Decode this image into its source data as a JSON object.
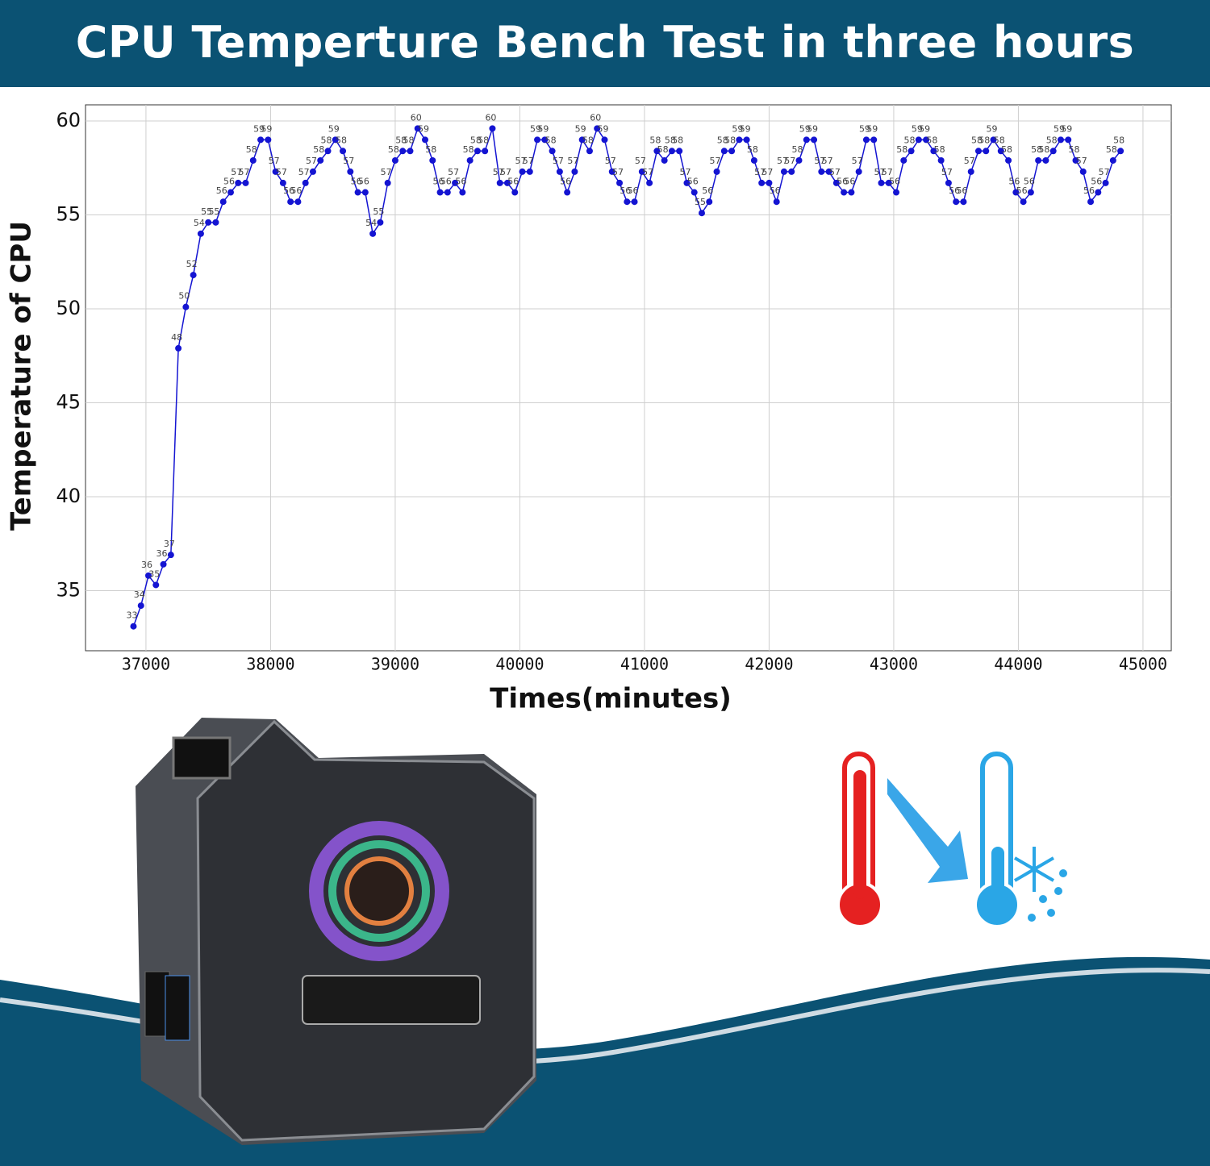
{
  "chart_data": {
    "type": "line",
    "title": "CPU Temperture Bench Test in three hours",
    "x_label": "Times(minutes)",
    "y_label": "Temperature of CPU",
    "color": "#1414d2",
    "grid": true,
    "xlim": [
      36515,
      45227
    ],
    "ylim": [
      31.8,
      60.86
    ],
    "xticks": [
      37000,
      38000,
      39000,
      40000,
      41000,
      42000,
      43000,
      44000,
      45000
    ],
    "yticks": [
      35,
      40,
      45,
      50,
      55,
      60
    ],
    "x": [
      36900,
      36960,
      37020,
      37080,
      37140,
      37200,
      37260,
      37320,
      37380,
      37440,
      37500,
      37560,
      37620,
      37680,
      37740,
      37800,
      37860,
      37920,
      37980,
      38040,
      38100,
      38160,
      38220,
      38280,
      38340,
      38400,
      38460,
      38520,
      38580,
      38640,
      38700,
      38760,
      38820,
      38880,
      38940,
      39000,
      39060,
      39120,
      39180,
      39240,
      39300,
      39360,
      39420,
      39480,
      39540,
      39600,
      39660,
      39720,
      39780,
      39840,
      39900,
      39960,
      40020,
      40080,
      40140,
      40200,
      40260,
      40320,
      40380,
      40440,
      40500,
      40560,
      40620,
      40680,
      40740,
      40800,
      40860,
      40920,
      40980,
      41040,
      41100,
      41160,
      41220,
      41280,
      41340,
      41400,
      41460,
      41520,
      41580,
      41640,
      41700,
      41760,
      41820,
      41880,
      41940,
      42000,
      42060,
      42120,
      42180,
      42240,
      42300,
      42360,
      42420,
      42480,
      42540,
      42600,
      42660,
      42720,
      42780,
      42840,
      42900,
      42960,
      43020,
      43080,
      43140,
      43200,
      43260,
      43320,
      43380,
      43440,
      43500,
      43560,
      43620,
      43680,
      43740,
      43800,
      43860,
      43920,
      43980,
      44040,
      44100,
      44160,
      44220,
      44280,
      44340,
      44400,
      44460,
      44520,
      44580,
      44640,
      44700,
      44760,
      44820
    ],
    "values": [
      33.1,
      34.2,
      35.8,
      35.3,
      36.4,
      36.9,
      47.9,
      50.1,
      51.8,
      54.0,
      54.6,
      54.6,
      55.7,
      56.2,
      56.7,
      56.7,
      57.9,
      59.0,
      59.0,
      57.3,
      56.7,
      55.7,
      55.7,
      56.7,
      57.3,
      57.9,
      58.4,
      59.0,
      58.4,
      57.3,
      56.2,
      56.2,
      54.0,
      54.6,
      56.7,
      57.9,
      58.4,
      58.4,
      59.6,
      59.0,
      57.9,
      56.2,
      56.2,
      56.7,
      56.2,
      57.9,
      58.4,
      58.4,
      59.6,
      56.7,
      56.7,
      56.2,
      57.3,
      57.3,
      59.0,
      59.0,
      58.4,
      57.3,
      56.2,
      57.3,
      59.0,
      58.4,
      59.6,
      59.0,
      57.3,
      56.7,
      55.7,
      55.7,
      57.3,
      56.7,
      58.4,
      57.9,
      58.4,
      58.4,
      56.7,
      56.2,
      55.1,
      55.7,
      57.3,
      58.4,
      58.4,
      59.0,
      59.0,
      57.9,
      56.7,
      56.7,
      55.7,
      57.3,
      57.3,
      57.9,
      59.0,
      59.0,
      57.3,
      57.3,
      56.7,
      56.2,
      56.2,
      57.3,
      59.0,
      59.0,
      56.7,
      56.7,
      56.2,
      57.9,
      58.4,
      59.0,
      59.0,
      58.4,
      57.9,
      56.7,
      55.7,
      55.7,
      57.3,
      58.4,
      58.4,
      59.0,
      58.4,
      57.9,
      56.2,
      55.7,
      56.2,
      57.9,
      57.9,
      58.4,
      59.0,
      59.0,
      57.9,
      57.3,
      55.7,
      56.2,
      56.7,
      57.9,
      58.4
    ],
    "value_labels": [
      "33",
      "34",
      "36",
      "35",
      "36",
      "37",
      "48",
      "50",
      "52",
      "54",
      "55",
      "55",
      "56",
      "56",
      "57",
      "57",
      "58",
      "59",
      "59",
      "57",
      "57",
      "56",
      "56",
      "57",
      "57",
      "58",
      "58",
      "59",
      "58",
      "57",
      "56",
      "56",
      "54",
      "55",
      "57",
      "58",
      "58",
      "58",
      "60",
      "59",
      "58",
      "56",
      "56",
      "57",
      "56",
      "58",
      "58",
      "58",
      "60",
      "57",
      "57",
      "56",
      "57",
      "57",
      "59",
      "59",
      "58",
      "57",
      "56",
      "57",
      "59",
      "58",
      "60",
      "59",
      "57",
      "57",
      "56",
      "56",
      "57",
      "57",
      "58",
      "58",
      "58",
      "58",
      "57",
      "56",
      "55",
      "56",
      "57",
      "58",
      "58",
      "59",
      "59",
      "58",
      "57",
      "57",
      "56",
      "57",
      "57",
      "58",
      "59",
      "59",
      "57",
      "57",
      "57",
      "56",
      "56",
      "57",
      "59",
      "59",
      "57",
      "57",
      "56",
      "58",
      "58",
      "59",
      "59",
      "58",
      "58",
      "57",
      "56",
      "56",
      "57",
      "58",
      "58",
      "59",
      "58",
      "58",
      "56",
      "56",
      "56",
      "58",
      "58",
      "58",
      "59",
      "59",
      "58",
      "57",
      "56",
      "56",
      "57",
      "58",
      "58"
    ]
  }
}
